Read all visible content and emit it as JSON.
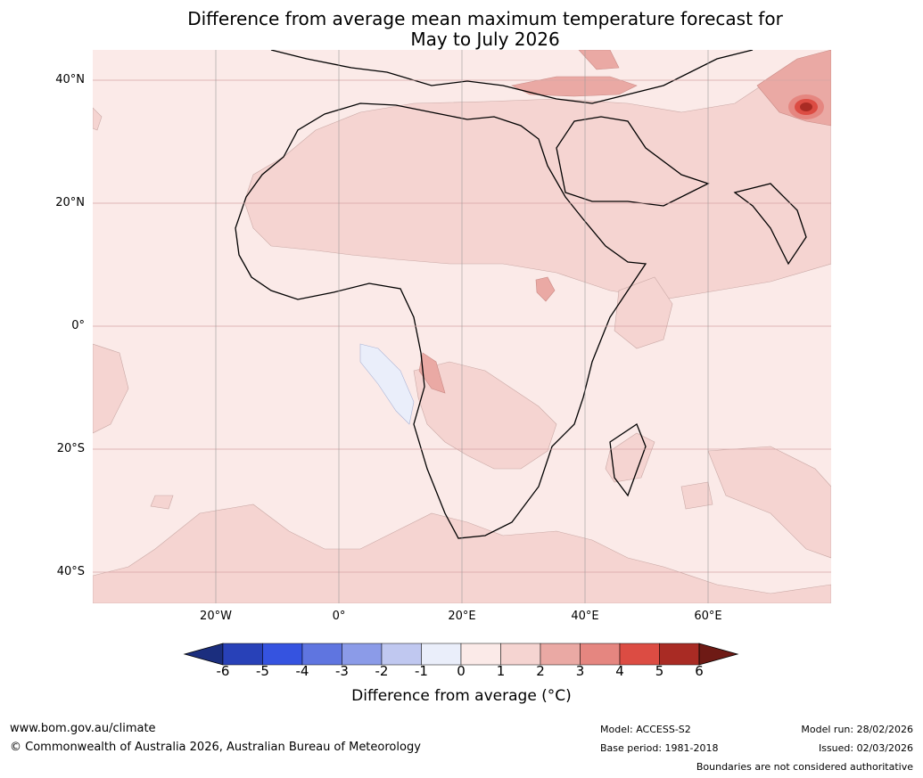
{
  "title": {
    "line1": "Difference from average mean maximum temperature forecast for",
    "line2": "May to July 2026"
  },
  "map": {
    "latitude_labels": [
      "40°N",
      "20°N",
      "0°",
      "20°S",
      "40°S"
    ],
    "longitude_labels": [
      "20°W",
      "0°",
      "20°E",
      "40°E",
      "60°E"
    ]
  },
  "colorbar": {
    "ticks": [
      "-6",
      "-5",
      "-4",
      "-3",
      "-2",
      "-1",
      "0",
      "1",
      "2",
      "3",
      "4",
      "5",
      "6"
    ],
    "colors": [
      "#1b2e7e",
      "#2841b8",
      "#3553e0",
      "#5f75e0",
      "#8b9be8",
      "#c0c8f0",
      "#eaeefa",
      "#fbeae8",
      "#f5d4d1",
      "#eaa9a4",
      "#e58680",
      "#dc4c43",
      "#a92b24",
      "#6e1a15"
    ],
    "label": "Difference from average (°C)"
  },
  "footer": {
    "website": "www.bom.gov.au/climate",
    "copyright": "© Commonwealth of Australia 2026, Australian Bureau of Meteorology",
    "model": "Model: ACCESS-S2",
    "base_period": "Base period: 1981-2018",
    "model_run": "Model run: 28/02/2026",
    "issued": "Issued: 02/03/2026",
    "disclaimer": "Boundaries are not considered authoritative"
  }
}
